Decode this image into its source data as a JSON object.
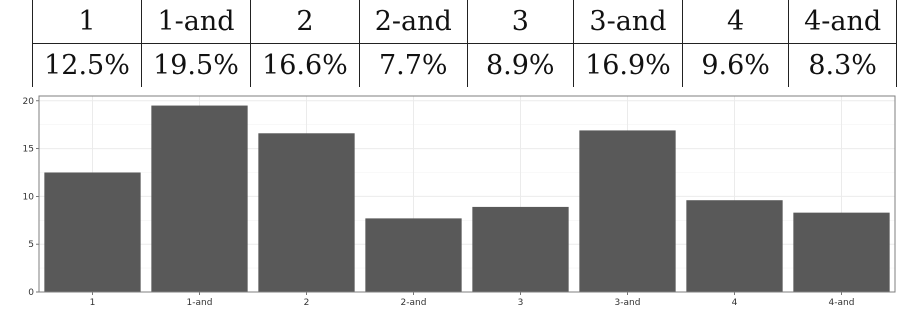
{
  "table": {
    "headers": [
      "1",
      "1-and",
      "2",
      "2-and",
      "3",
      "3-and",
      "4",
      "4-and"
    ],
    "values": [
      "12.5%",
      "19.5%",
      "16.6%",
      "7.7%",
      "8.9%",
      "16.9%",
      "9.6%",
      "8.3%"
    ]
  },
  "chart_data": {
    "type": "bar",
    "categories": [
      "1",
      "1-and",
      "2",
      "2-and",
      "3",
      "3-and",
      "4",
      "4-and"
    ],
    "values": [
      12.5,
      19.5,
      16.6,
      7.7,
      8.9,
      16.9,
      9.6,
      8.3
    ],
    "ylim": [
      0,
      20.5
    ],
    "yticks": [
      0,
      5,
      10,
      15,
      20
    ],
    "grid": true,
    "bar_color": "#595959",
    "grid_color": "#ebebeb",
    "title": "",
    "xlabel": "",
    "ylabel": ""
  }
}
